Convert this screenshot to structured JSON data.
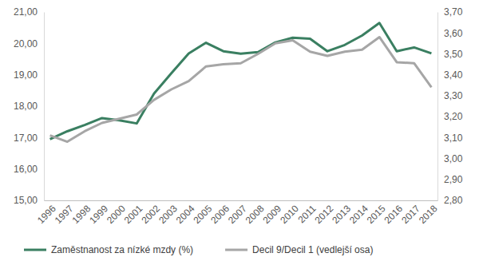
{
  "chart_data": {
    "type": "line",
    "categories": [
      "1996",
      "1997",
      "1998",
      "1999",
      "2000",
      "2001",
      "2002",
      "2003",
      "2004",
      "2005",
      "2006",
      "2007",
      "2008",
      "2009",
      "2010",
      "2011",
      "2012",
      "2013",
      "2014",
      "2015",
      "2016",
      "2017",
      "2018"
    ],
    "series": [
      {
        "name": "Zaměstnanost za nízké mzdy (%)",
        "color": "#3a7f61",
        "values": [
          16.95,
          17.2,
          17.4,
          17.62,
          17.55,
          17.45,
          18.4,
          19.05,
          19.68,
          20.02,
          19.75,
          19.67,
          19.72,
          20.03,
          20.18,
          20.15,
          19.75,
          19.95,
          20.25,
          20.65,
          19.75,
          19.87,
          19.68
        ]
      },
      {
        "name": "Decil 9/Decil 1  (vedlejší osa)",
        "color": "#a6a6a6",
        "axis": "y2",
        "values": [
          3.11,
          3.08,
          3.13,
          3.17,
          3.19,
          3.21,
          3.28,
          3.33,
          3.37,
          3.44,
          3.45,
          3.455,
          3.5,
          3.55,
          3.565,
          3.51,
          3.49,
          3.51,
          3.52,
          3.58,
          3.46,
          3.455,
          3.34
        ]
      }
    ],
    "ylim": [
      15,
      21
    ],
    "yticks": [
      {
        "value": 15,
        "label": "15,00"
      },
      {
        "value": 16,
        "label": "16,00"
      },
      {
        "value": 17,
        "label": "17,00"
      },
      {
        "value": 18,
        "label": "18,00"
      },
      {
        "value": 19,
        "label": "19,00"
      },
      {
        "value": 20,
        "label": "20,00"
      },
      {
        "value": 21,
        "label": "21,00"
      }
    ],
    "y2lim": [
      2.8,
      3.7
    ],
    "y2ticks": [
      {
        "value": 2.8,
        "label": "2,80"
      },
      {
        "value": 2.9,
        "label": "2,90"
      },
      {
        "value": 3.0,
        "label": "3,00"
      },
      {
        "value": 3.1,
        "label": "3,10"
      },
      {
        "value": 3.2,
        "label": "3,20"
      },
      {
        "value": 3.3,
        "label": "3,30"
      },
      {
        "value": 3.4,
        "label": "3,40"
      },
      {
        "value": 3.5,
        "label": "3,50"
      },
      {
        "value": 3.6,
        "label": "3,60"
      },
      {
        "value": 3.7,
        "label": "3,70"
      }
    ],
    "grid": false,
    "legend": "bottom"
  }
}
